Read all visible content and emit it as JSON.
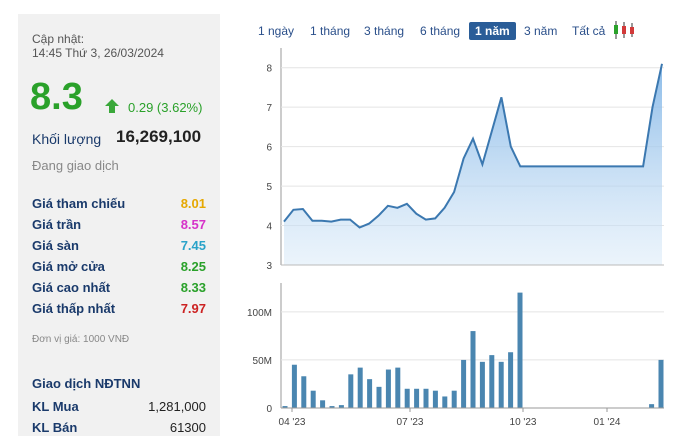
{
  "header": {
    "update_label": "Cập nhật:",
    "update_time": "14:45 Thứ 3, 26/03/2024"
  },
  "quote": {
    "price": "8.3",
    "change": "0.29 (3.62%)",
    "volume_label": "Khối lượng",
    "volume": "16,269,100",
    "status": "Đang giao dịch",
    "up_color": "#2aa12a"
  },
  "details": [
    {
      "label": "Giá tham chiếu",
      "value": "8.01",
      "color": "#e6a800"
    },
    {
      "label": "Giá trần",
      "value": "8.57",
      "color": "#d633c9"
    },
    {
      "label": "Giá sàn",
      "value": "7.45",
      "color": "#2aa3c9"
    },
    {
      "label": "Giá mở cửa",
      "value": "8.25",
      "color": "#2aa12a"
    },
    {
      "label": "Giá cao nhất",
      "value": "8.33",
      "color": "#2aa12a"
    },
    {
      "label": "Giá thấp nhất",
      "value": "7.97",
      "color": "#cc2222"
    }
  ],
  "unit_note": "Đơn vị giá: 1000 VNĐ",
  "foreign": {
    "title": "Giao dịch NĐTNN",
    "rows": [
      {
        "label": "KL Mua",
        "value": "1,281,000"
      },
      {
        "label": "KL Bán",
        "value": "61300"
      }
    ]
  },
  "tabs": [
    "1 ngày",
    "1 tháng",
    "3 tháng",
    "6 tháng",
    "1 năm",
    "3 năm",
    "Tất cả"
  ],
  "active_tab": "1 năm",
  "candle_icon": "candlestick-icon",
  "chart_data": [
    {
      "type": "area",
      "y_ticks": [
        "3",
        "4",
        "5",
        "6",
        "7",
        "8"
      ],
      "ylim": [
        3,
        8.5
      ],
      "y": [
        4.1,
        4.4,
        4.42,
        4.12,
        4.12,
        4.1,
        4.15,
        4.15,
        3.95,
        4.05,
        4.25,
        4.5,
        4.45,
        4.55,
        4.3,
        4.15,
        4.18,
        4.45,
        4.85,
        5.7,
        6.2,
        5.55,
        6.4,
        7.25,
        6.0,
        5.5,
        5.5,
        5.5,
        5.5,
        5.5,
        5.5,
        5.5,
        5.5,
        5.5,
        5.5,
        5.5,
        5.5,
        5.5,
        5.5,
        7.0,
        8.1
      ],
      "grid": true,
      "line_color": "#3b78b0"
    },
    {
      "type": "bar",
      "x_ticks": [
        "04 '23",
        "07 '23",
        "10 '23",
        "01 '24"
      ],
      "y_ticks": [
        "0",
        "50M",
        "100M"
      ],
      "ylim": [
        0,
        130
      ],
      "values": [
        2,
        45,
        33,
        18,
        8,
        2,
        3,
        35,
        42,
        30,
        22,
        40,
        42,
        20,
        20,
        20,
        18,
        12,
        18,
        50,
        80,
        48,
        55,
        48,
        58,
        120,
        0,
        0,
        0,
        0,
        0,
        0,
        0,
        0,
        0,
        0,
        0,
        0,
        0,
        4,
        50
      ],
      "bar_color": "#4a86b0",
      "grid": true
    }
  ]
}
